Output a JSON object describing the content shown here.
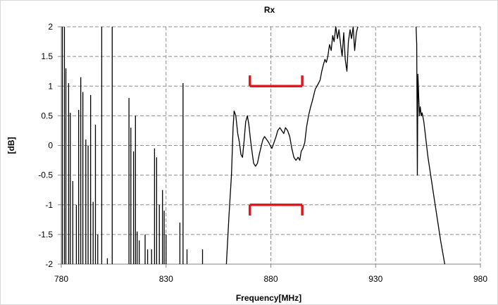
{
  "chart_data": {
    "type": "line",
    "title": "Rx",
    "xlabel": "Frequency[MHz]",
    "ylabel": "[dB]",
    "xlim": [
      780,
      980
    ],
    "ylim": [
      -2,
      2
    ],
    "x_ticks": [
      "780",
      "830",
      "880",
      "930",
      "980"
    ],
    "y_ticks": [
      "2",
      "1.5",
      "1",
      "0.5",
      "0",
      "-0.5",
      "-1",
      "-1.5",
      "-2"
    ],
    "grid": true,
    "legend": "none",
    "colors": {
      "series": "#000000",
      "spec_mask": "#e8141a",
      "grid": "#8c8c8c"
    },
    "spec_mask": [
      {
        "name": "upper",
        "x": [
          870,
          895
        ],
        "y": 1.0,
        "end_tick_to": 1.18
      },
      {
        "name": "lower",
        "x": [
          870,
          895
        ],
        "y": -1.0,
        "end_tick_to": -1.18
      }
    ],
    "spikes": [
      {
        "x": 780.5,
        "y": 2
      },
      {
        "x": 781.5,
        "y": 2
      },
      {
        "x": 782.2,
        "y": 1.3
      },
      {
        "x": 783.5,
        "y": 1.05
      },
      {
        "x": 784.3,
        "y": 0.55
      },
      {
        "x": 785.5,
        "y": -0.6
      },
      {
        "x": 787.2,
        "y": -1.0
      },
      {
        "x": 788.3,
        "y": 0.6
      },
      {
        "x": 789.3,
        "y": 1.15
      },
      {
        "x": 790.3,
        "y": 0.9
      },
      {
        "x": 791.7,
        "y": 0.1
      },
      {
        "x": 792.8,
        "y": 0.0
      },
      {
        "x": 794.0,
        "y": 0.85
      },
      {
        "x": 795.2,
        "y": -0.95
      },
      {
        "x": 796.3,
        "y": 0.35
      },
      {
        "x": 797.4,
        "y": -1.5
      },
      {
        "x": 799.3,
        "y": 2
      },
      {
        "x": 802.0,
        "y": -1.9
      },
      {
        "x": 804.3,
        "y": 2
      },
      {
        "x": 812.3,
        "y": 0.8
      },
      {
        "x": 813.2,
        "y": 0.3
      },
      {
        "x": 814.5,
        "y": -0.1
      },
      {
        "x": 815.4,
        "y": 0.5
      },
      {
        "x": 816.2,
        "y": -1.45
      },
      {
        "x": 817.2,
        "y": -1.6
      },
      {
        "x": 820.0,
        "y": -1.5
      },
      {
        "x": 821.2,
        "y": -1.75
      },
      {
        "x": 823.1,
        "y": -1.75
      },
      {
        "x": 824.5,
        "y": -0.05
      },
      {
        "x": 825.5,
        "y": -0.2
      },
      {
        "x": 826.8,
        "y": -1.0
      },
      {
        "x": 828.3,
        "y": -0.75
      },
      {
        "x": 829.1,
        "y": -1.1
      },
      {
        "x": 830.0,
        "y": -1.5
      },
      {
        "x": 836.6,
        "y": -1.3
      },
      {
        "x": 838.1,
        "y": 1.05
      },
      {
        "x": 840.0,
        "y": -1.75
      },
      {
        "x": 847.4,
        "y": -1.75
      }
    ],
    "passband": {
      "x": [
        858.8,
        860.0,
        861.2,
        862.0,
        862.5,
        863.3,
        864.2,
        865.0,
        865.7,
        866.5,
        867.3,
        868.0,
        868.8,
        869.5,
        870.3,
        871.2,
        871.8,
        872.7,
        873.6,
        874.5,
        875.5,
        876.2,
        877.0,
        878.0,
        879.0,
        879.7,
        880.5,
        881.5,
        882.5,
        883.3,
        884.3,
        885.2,
        886.2,
        887.0,
        888.0,
        889.0,
        890.0,
        891.0,
        892.0,
        893.0,
        893.8,
        894.5,
        895.3,
        896.2,
        897.0,
        898.0,
        899.0,
        899.8,
        900.5,
        901.2,
        902.0,
        902.8,
        903.5,
        904.3,
        905.0,
        905.8,
        906.5,
        907.2,
        908.0,
        908.8,
        909.5,
        910.2,
        911.0,
        911.8,
        912.5,
        913.3,
        914.0,
        914.8,
        915.5,
        916.3,
        917.0,
        917.8,
        918.5,
        919.3,
        920.0,
        920.8,
        921.5
      ],
      "y": [
        -2.0,
        -1.2,
        -0.5,
        0.3,
        0.58,
        0.5,
        0.2,
        0.05,
        -0.15,
        -0.2,
        0.1,
        0.4,
        0.5,
        0.35,
        0.1,
        -0.15,
        -0.3,
        -0.35,
        -0.3,
        -0.15,
        0.0,
        0.1,
        0.15,
        0.1,
        0.05,
        0.0,
        -0.05,
        0.05,
        0.15,
        0.25,
        0.3,
        0.25,
        0.2,
        0.3,
        0.25,
        0.15,
        -0.05,
        -0.2,
        -0.25,
        -0.2,
        -0.25,
        -0.1,
        -0.05,
        0.05,
        0.3,
        0.5,
        0.65,
        0.75,
        0.85,
        0.95,
        1.0,
        1.05,
        1.1,
        1.25,
        1.35,
        1.45,
        1.4,
        1.5,
        1.7,
        1.6,
        1.85,
        1.75,
        2.0,
        1.8,
        1.95,
        1.7,
        1.5,
        1.9,
        1.45,
        1.25,
        1.75,
        1.95,
        1.8,
        2.0,
        1.6,
        1.9,
        2.0
      ]
    },
    "upper_band_edge": {
      "x": [
        949.3,
        949.6,
        949.9,
        950.2,
        950.5,
        950.9,
        951.3,
        951.8,
        952.2,
        953.0,
        955.0,
        958.0,
        961.0,
        963.0
      ],
      "y": [
        2.0,
        1.7,
        -0.5,
        1.2,
        0.9,
        0.5,
        0.65,
        0.5,
        0.55,
        0.4,
        -0.2,
        -0.9,
        -1.6,
        -2.0
      ]
    }
  }
}
